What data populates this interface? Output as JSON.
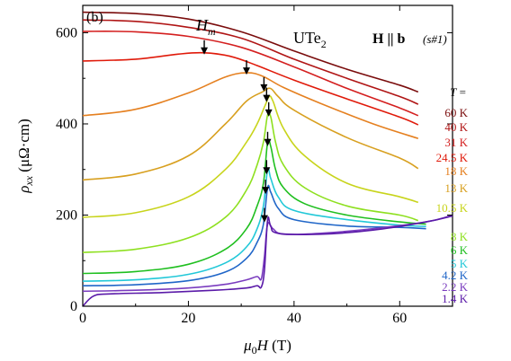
{
  "chart_data": {
    "type": "line",
    "panel_label": "(b)",
    "material": "UTe",
    "material_subscript": "2",
    "field_orientation": "H || b",
    "sample": "(s#1)",
    "series_marker": "H",
    "series_marker_subscript": "m",
    "legend_header": "T =",
    "xlabel": "μ0H (T)",
    "ylabel": "ρxx (μΩ·cm)",
    "xlim": [
      0,
      70
    ],
    "ylim": [
      0,
      660
    ],
    "x_ticks": [
      0,
      20,
      40,
      60
    ],
    "y_ticks": [
      0,
      200,
      400,
      600
    ],
    "grid": false,
    "series": [
      {
        "name": "60 K",
        "color": "#7a0c0c",
        "points": [
          [
            0,
            645
          ],
          [
            10,
            642
          ],
          [
            20,
            630
          ],
          [
            30,
            602
          ],
          [
            40,
            560
          ],
          [
            50,
            520
          ],
          [
            60,
            485
          ],
          [
            63.5,
            470
          ]
        ]
      },
      {
        "name": "40 K",
        "color": "#b01515",
        "points": [
          [
            0,
            628
          ],
          [
            10,
            625
          ],
          [
            20,
            612
          ],
          [
            30,
            588
          ],
          [
            40,
            542
          ],
          [
            50,
            500
          ],
          [
            60,
            460
          ],
          [
            63.5,
            443
          ]
        ]
      },
      {
        "name": "31 K",
        "color": "#d41f1f",
        "points": [
          [
            0,
            603
          ],
          [
            10,
            602
          ],
          [
            20,
            592
          ],
          [
            30,
            568
          ],
          [
            40,
            525
          ],
          [
            50,
            478
          ],
          [
            60,
            435
          ],
          [
            63.5,
            418
          ]
        ]
      },
      {
        "name": "24.5 K",
        "color": "#e01a0a",
        "points": [
          [
            0,
            538
          ],
          [
            10,
            542
          ],
          [
            18,
            553
          ],
          [
            23,
            556
          ],
          [
            28,
            548
          ],
          [
            33,
            528
          ],
          [
            40,
            496
          ],
          [
            50,
            455
          ],
          [
            60,
            415
          ],
          [
            63.5,
            398
          ]
        ]
      },
      {
        "name": "18 K",
        "color": "#e58020",
        "points": [
          [
            0,
            418
          ],
          [
            10,
            432
          ],
          [
            20,
            468
          ],
          [
            27,
            503
          ],
          [
            31,
            512
          ],
          [
            34,
            505
          ],
          [
            38,
            480
          ],
          [
            45,
            445
          ],
          [
            55,
            400
          ],
          [
            63.5,
            368
          ]
        ]
      },
      {
        "name": "13 K",
        "color": "#d8a020",
        "points": [
          [
            0,
            277
          ],
          [
            10,
            290
          ],
          [
            20,
            330
          ],
          [
            27,
            400
          ],
          [
            31,
            450
          ],
          [
            34,
            470
          ],
          [
            35.5,
            478
          ],
          [
            37,
            460
          ],
          [
            40,
            430
          ],
          [
            50,
            370
          ],
          [
            60,
            325
          ],
          [
            63.5,
            302
          ]
        ]
      },
      {
        "name": "10.5 K",
        "color": "#c8d41c",
        "points": [
          [
            0,
            195
          ],
          [
            10,
            205
          ],
          [
            20,
            240
          ],
          [
            27,
            300
          ],
          [
            31,
            360
          ],
          [
            33,
            400
          ],
          [
            34.5,
            440
          ],
          [
            35.3,
            460
          ],
          [
            36,
            450
          ],
          [
            38,
            390
          ],
          [
            42,
            330
          ],
          [
            50,
            270
          ],
          [
            60,
            240
          ],
          [
            63.5,
            228
          ]
        ]
      },
      {
        "name": "8 K",
        "color": "#8ee020",
        "points": [
          [
            0,
            118
          ],
          [
            10,
            125
          ],
          [
            20,
            150
          ],
          [
            27,
            195
          ],
          [
            31,
            255
          ],
          [
            33,
            310
          ],
          [
            34.2,
            360
          ],
          [
            35,
            420
          ],
          [
            35.6,
            415
          ],
          [
            36.5,
            360
          ],
          [
            38,
            310
          ],
          [
            42,
            260
          ],
          [
            50,
            220
          ],
          [
            60,
            200
          ],
          [
            63.5,
            188
          ]
        ]
      },
      {
        "name": "6 K",
        "color": "#1fbf1f",
        "points": [
          [
            0,
            72
          ],
          [
            10,
            76
          ],
          [
            20,
            92
          ],
          [
            27,
            125
          ],
          [
            31,
            170
          ],
          [
            33,
            220
          ],
          [
            34.2,
            270
          ],
          [
            35,
            360
          ],
          [
            35.6,
            350
          ],
          [
            36.5,
            300
          ],
          [
            38,
            260
          ],
          [
            42,
            225
          ],
          [
            50,
            200
          ],
          [
            60,
            185
          ],
          [
            65,
            180
          ]
        ]
      },
      {
        "name": "5 K",
        "color": "#22c8d8",
        "points": [
          [
            0,
            55
          ],
          [
            10,
            58
          ],
          [
            20,
            70
          ],
          [
            27,
            95
          ],
          [
            31,
            130
          ],
          [
            33,
            170
          ],
          [
            34.2,
            220
          ],
          [
            35,
            300
          ],
          [
            35.6,
            280
          ],
          [
            37,
            240
          ],
          [
            40,
            210
          ],
          [
            50,
            190
          ],
          [
            60,
            178
          ],
          [
            65,
            175
          ]
        ]
      },
      {
        "name": "4.2 K",
        "color": "#2066c8",
        "points": [
          [
            0,
            45
          ],
          [
            10,
            47
          ],
          [
            20,
            56
          ],
          [
            27,
            75
          ],
          [
            31,
            105
          ],
          [
            33,
            140
          ],
          [
            34.2,
            180
          ],
          [
            35,
            260
          ],
          [
            35.6,
            250
          ],
          [
            37,
            215
          ],
          [
            40,
            190
          ],
          [
            50,
            176
          ],
          [
            60,
            173
          ],
          [
            65,
            170
          ]
        ]
      },
      {
        "name": "2.2 K",
        "color": "#7a3cbf",
        "points": [
          [
            0,
            33
          ],
          [
            10,
            35
          ],
          [
            20,
            40
          ],
          [
            27,
            48
          ],
          [
            31,
            58
          ],
          [
            33,
            65
          ],
          [
            33.8,
            60
          ],
          [
            34.4,
            110
          ],
          [
            35,
            180
          ],
          [
            36,
            170
          ],
          [
            38,
            158
          ],
          [
            45,
            160
          ],
          [
            55,
            170
          ],
          [
            65,
            185
          ],
          [
            70,
            200
          ]
        ]
      },
      {
        "name": "1.4 K",
        "color": "#5a1aa8",
        "points": [
          [
            0,
            0
          ],
          [
            2,
            22
          ],
          [
            5,
            27
          ],
          [
            15,
            30
          ],
          [
            25,
            35
          ],
          [
            31,
            40
          ],
          [
            33,
            45
          ],
          [
            33.8,
            42
          ],
          [
            34.4,
            80
          ],
          [
            35,
            190
          ],
          [
            35.6,
            175
          ],
          [
            37,
            160
          ],
          [
            45,
            158
          ],
          [
            55,
            167
          ],
          [
            65,
            185
          ],
          [
            70,
            198
          ]
        ]
      }
    ],
    "arrows": [
      {
        "x": 23,
        "y": 556
      },
      {
        "x": 31,
        "y": 512
      },
      {
        "x": 34.3,
        "y": 475
      },
      {
        "x": 34.8,
        "y": 452
      },
      {
        "x": 35.2,
        "y": 420
      },
      {
        "x": 35.0,
        "y": 355
      },
      {
        "x": 34.8,
        "y": 293
      },
      {
        "x": 34.6,
        "y": 250
      },
      {
        "x": 34.4,
        "y": 188
      }
    ]
  }
}
